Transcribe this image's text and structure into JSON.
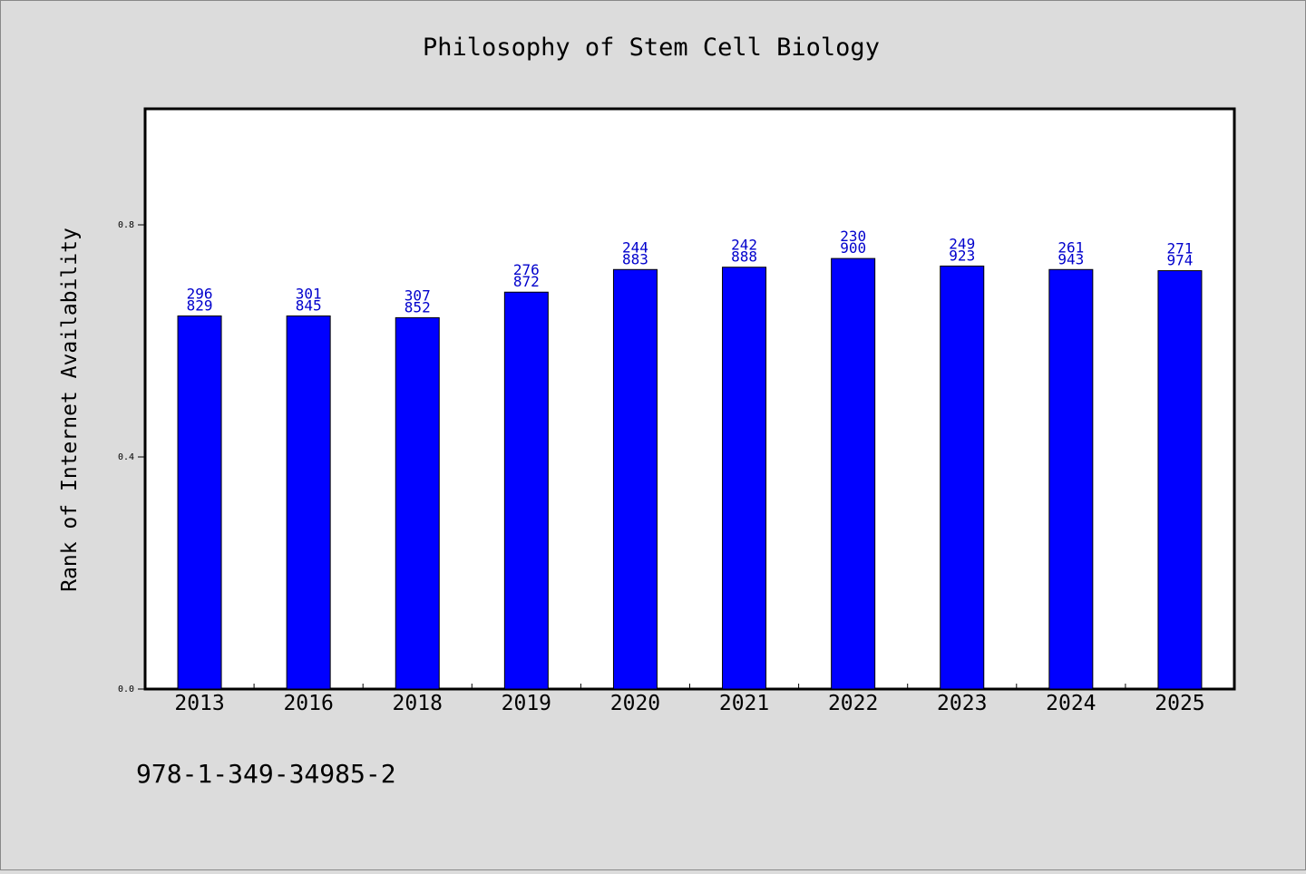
{
  "chart_data": {
    "type": "bar",
    "title": "Philosophy of Stem Cell Biology",
    "ylabel": "Rank of Internet Availability",
    "xlabel": "",
    "ylim": [
      0,
      1.0
    ],
    "yticks": [
      {
        "value": 0.0,
        "label": "0.0"
      },
      {
        "value": 0.4,
        "label": "0.4"
      },
      {
        "value": 0.8,
        "label": "0.8"
      }
    ],
    "categories": [
      "2013",
      "2016",
      "2018",
      "2019",
      "2020",
      "2021",
      "2022",
      "2023",
      "2024",
      "2025"
    ],
    "values": [
      0.643,
      0.643,
      0.64,
      0.684,
      0.723,
      0.727,
      0.742,
      0.729,
      0.723,
      0.721
    ],
    "label_top": [
      "296",
      "301",
      "307",
      "276",
      "244",
      "242",
      "230",
      "249",
      "261",
      "271"
    ],
    "label_bottom": [
      "829",
      "845",
      "852",
      "872",
      "883",
      "888",
      "900",
      "923",
      "943",
      "974"
    ],
    "bar_color": "#0000ff",
    "label_color": "#0000cc",
    "grid": false,
    "legend": "none"
  },
  "footer": {
    "isbn": "978-1-349-34985-2"
  }
}
